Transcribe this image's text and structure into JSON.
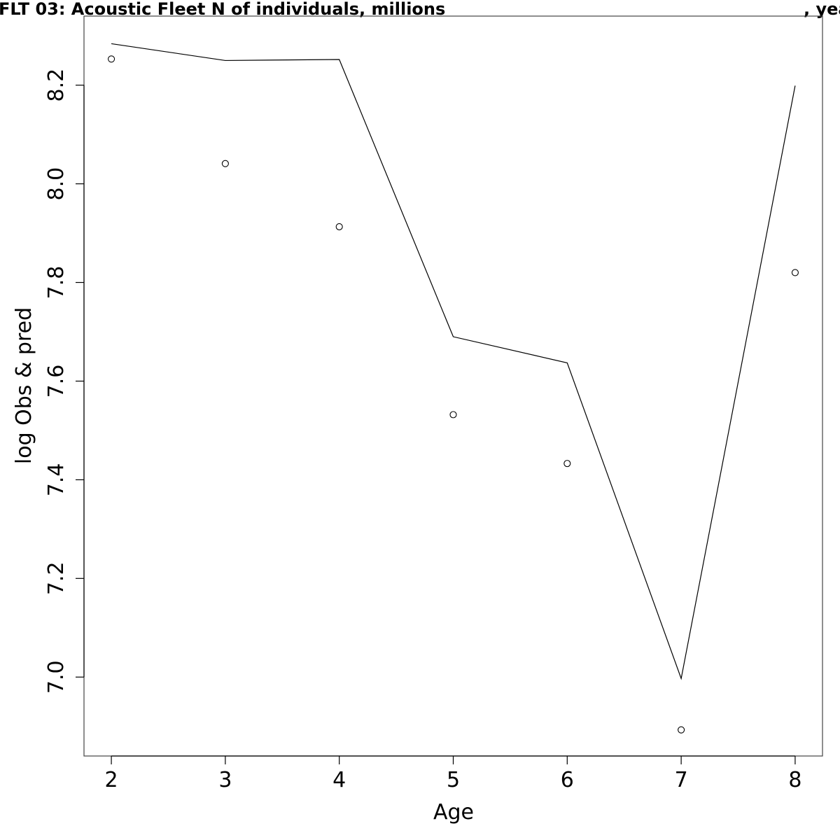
{
  "chart_data": {
    "type": "line",
    "title": "FLT 03: Acoustic Fleet   N of individuals, millions",
    "title_suffix": ", yea",
    "xlabel": "Age",
    "ylabel": "log Obs & pred",
    "xlim": [
      1.76,
      8.24
    ],
    "ylim": [
      6.84,
      8.34
    ],
    "x_ticks": [
      2,
      3,
      4,
      5,
      6,
      7,
      8
    ],
    "y_ticks": [
      7.0,
      7.2,
      7.4,
      7.6,
      7.8,
      8.0,
      8.2
    ],
    "y_tick_labels": [
      "7.0",
      "7.2",
      "7.4",
      "7.6",
      "7.8",
      "8.0",
      "8.2"
    ],
    "grid": false,
    "series": [
      {
        "style": "line",
        "color": "#000000",
        "x": [
          2,
          3,
          4,
          5,
          6,
          7,
          8
        ],
        "y": [
          8.284,
          8.25,
          8.252,
          7.69,
          7.637,
          6.997,
          8.199
        ]
      },
      {
        "style": "points",
        "marker": "open-circle",
        "color": "#000000",
        "x": [
          2,
          3,
          4,
          5,
          6,
          7,
          8
        ],
        "y": [
          8.253,
          8.041,
          7.913,
          7.532,
          7.433,
          6.893,
          7.82
        ]
      }
    ]
  }
}
